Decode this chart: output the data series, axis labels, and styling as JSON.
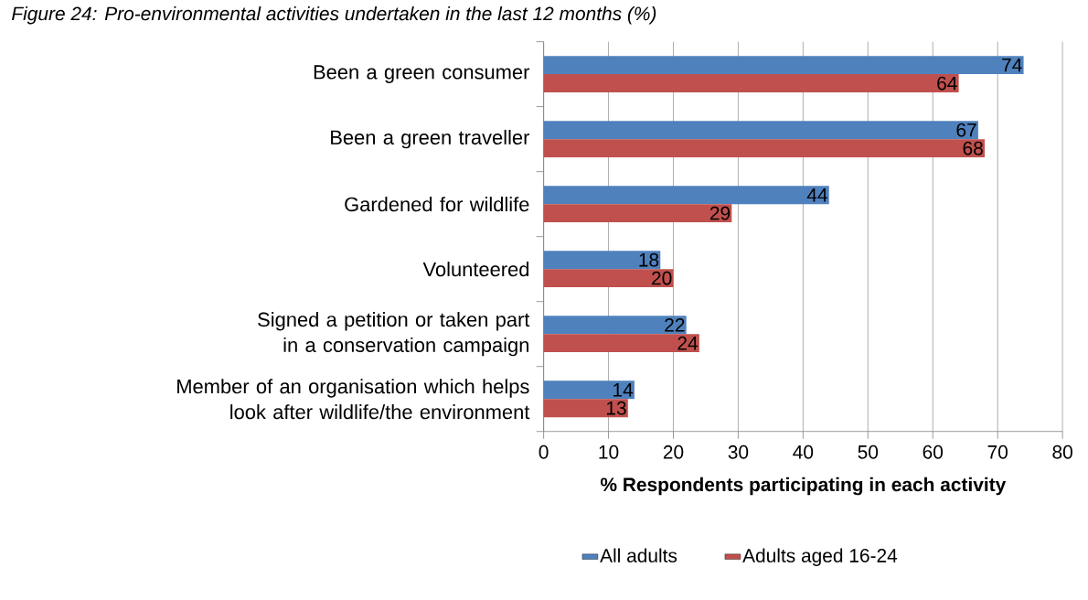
{
  "chart_data": {
    "type": "bar",
    "orientation": "horizontal",
    "title": "Figure 24: Pro-environmental activities undertaken in the last 12 months (%)",
    "xlabel": "% Respondents participating in each activity",
    "categories": [
      "Been a green consumer",
      "Been a green traveller",
      "Gardened for wildlife",
      "Volunteered",
      "Signed a petition or taken part in a conservation campaign",
      "Member of an organisation which helps look after wildlife/the environment"
    ],
    "series": [
      {
        "name": "All adults",
        "color": "#4f81bd",
        "values": [
          74,
          67,
          44,
          18,
          22,
          14
        ]
      },
      {
        "name": "Adults aged 16-24",
        "color": "#c0504d",
        "values": [
          64,
          68,
          29,
          20,
          24,
          13
        ]
      }
    ],
    "xlim": [
      0,
      80
    ],
    "xticks": [
      0,
      10,
      20,
      30,
      40,
      50,
      60,
      70,
      80
    ],
    "grid": "x",
    "legend": "bottom",
    "data_labels": true
  }
}
